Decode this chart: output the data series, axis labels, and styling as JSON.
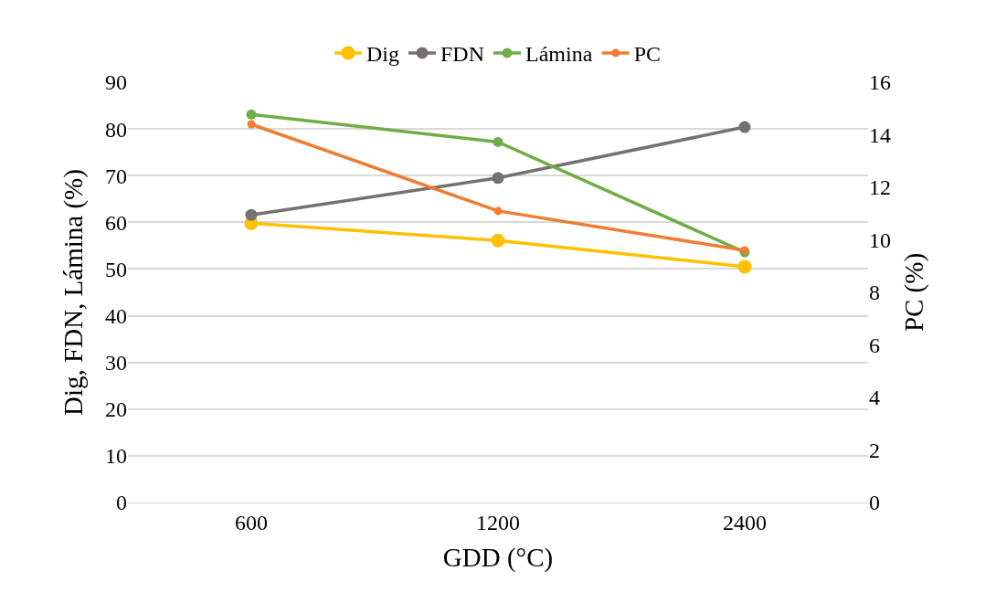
{
  "chart_data": {
    "type": "line",
    "xlabel": "GDD (°C)",
    "ylabel": "Dig, FDN, Lámina (%)",
    "y2label": "PC (%)",
    "categories": [
      "600",
      "1200",
      "2400"
    ],
    "series": [
      {
        "name": "Dig",
        "color": "#ffc000",
        "values": [
          59.8,
          56.1,
          50.5
        ]
      },
      {
        "name": "FDN",
        "color": "#767171",
        "values": [
          61.6,
          69.5,
          80.4
        ]
      },
      {
        "name": "Lámina",
        "color": "#70ad47",
        "values": [
          83.1,
          77.2,
          53.6
        ]
      },
      {
        "name": "PC",
        "color": "#ed7d31",
        "values": [
          14.4,
          11.1,
          9.6
        ],
        "axis": "y2"
      }
    ],
    "ylim": [
      0,
      90
    ],
    "yticks": [
      0,
      10,
      20,
      30,
      40,
      50,
      60,
      70,
      80,
      90
    ],
    "y2lim": [
      0,
      16
    ],
    "y2ticks": [
      0,
      2,
      4,
      6,
      8,
      10,
      12,
      14,
      16
    ],
    "grid": "y",
    "legend": "top",
    "marker": "circle",
    "line_style": "solid"
  }
}
